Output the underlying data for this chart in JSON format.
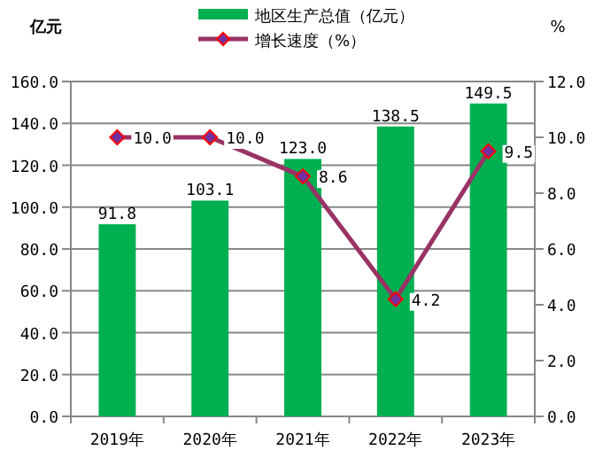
{
  "chart_data": {
    "type": "bar",
    "ylabel": "亿元",
    "y2label": "%",
    "categories": [
      "2019年",
      "2020年",
      "2021年",
      "2022年",
      "2023年"
    ],
    "series": [
      {
        "name": "地区生产总值（亿元）",
        "color": "#00b050",
        "values": [
          91.8,
          103.1,
          123.0,
          138.5,
          149.5
        ],
        "value_labels": [
          "91.8",
          "103.1",
          "123.0",
          "138.5",
          "149.5"
        ]
      },
      {
        "name": "增长速度（%）",
        "type": "line",
        "axis": "y2",
        "color": "#993366",
        "marker": "diamond",
        "values": [
          10.0,
          10.0,
          8.6,
          4.2,
          9.5
        ],
        "value_labels": [
          "10.0",
          "10.0",
          "8.6",
          "4.2",
          "9.5"
        ]
      }
    ],
    "ylim": [
      0,
      160
    ],
    "yticks": [
      {
        "value": 0,
        "label": "0.0"
      },
      {
        "value": 20,
        "label": "20.0"
      },
      {
        "value": 40,
        "label": "40.0"
      },
      {
        "value": 60,
        "label": "60.0"
      },
      {
        "value": 80,
        "label": "80.0"
      },
      {
        "value": 100,
        "label": "100.0"
      },
      {
        "value": 120,
        "label": "120.0"
      },
      {
        "value": 140,
        "label": "140.0"
      },
      {
        "value": 160,
        "label": "160.0"
      }
    ],
    "y2lim": [
      0,
      12
    ],
    "y2ticks": [
      {
        "value": 0,
        "label": "0.0"
      },
      {
        "value": 2,
        "label": "2.0"
      },
      {
        "value": 4,
        "label": "4.0"
      },
      {
        "value": 6,
        "label": "6.0"
      },
      {
        "value": 8,
        "label": "8.0"
      },
      {
        "value": 10,
        "label": "10.0"
      },
      {
        "value": 12,
        "label": "12.0"
      }
    ],
    "grid": "y",
    "legend": "top"
  }
}
